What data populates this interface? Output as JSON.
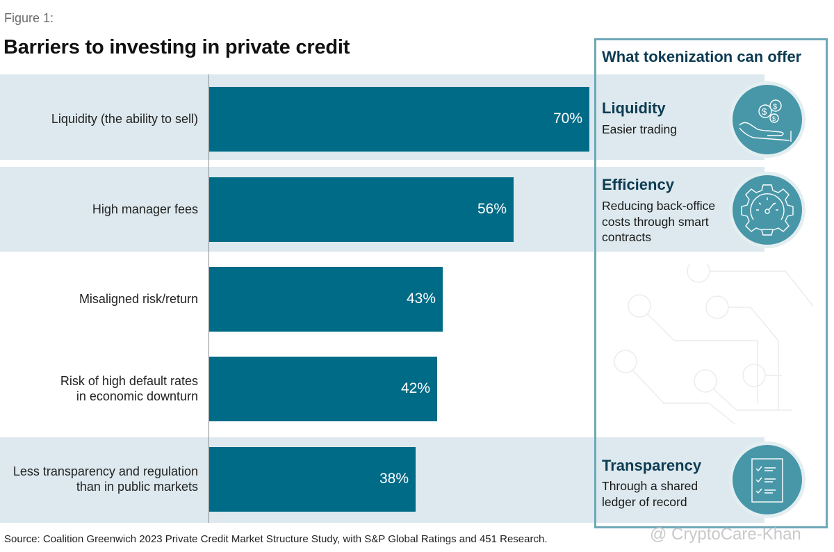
{
  "figure_label": "Figure 1:",
  "chart_data": {
    "type": "bar",
    "orientation": "horizontal",
    "title": "Barriers to investing in private credit",
    "categories": [
      "Liquidity (the ability to sell)",
      "High manager fees",
      "Misaligned risk/return",
      "Risk of high default rates in economic downturn",
      "Less transparency and regulation than in public markets"
    ],
    "category_lines": [
      [
        "Liquidity (the ability to sell)"
      ],
      [
        "High manager fees"
      ],
      [
        "Misaligned risk/return"
      ],
      [
        "Risk of high default rates",
        "in economic downturn"
      ],
      [
        "Less transparency and regulation",
        "than in public markets"
      ]
    ],
    "values": [
      70,
      56,
      43,
      42,
      38
    ],
    "value_labels": [
      "70%",
      "56%",
      "43%",
      "42%",
      "38%"
    ],
    "unit": "%",
    "xlim": [
      0,
      70
    ],
    "bar_color": "#006b87",
    "band_color": "#dde9ee"
  },
  "panel": {
    "title": "What tokenization can offer",
    "items": [
      {
        "heading": "Liquidity",
        "lines": [
          "Easier trading"
        ],
        "icon": "hand-coins-icon"
      },
      {
        "heading": "Efficiency",
        "lines": [
          "Reducing back-office",
          "costs through smart",
          "contracts"
        ],
        "icon": "gear-gauge-icon"
      },
      {
        "heading": "Transparency",
        "lines": [
          "Through a shared",
          "ledger of record"
        ],
        "icon": "checklist-icon"
      }
    ],
    "accent_color": "#4797a8",
    "heading_color": "#0d3b52"
  },
  "source": "Source: Coalition Greenwich 2023 Private Credit Market Structure Study, with S&P Global Ratings and 451 Research.",
  "watermark": "@ CryptoCare-Khan"
}
